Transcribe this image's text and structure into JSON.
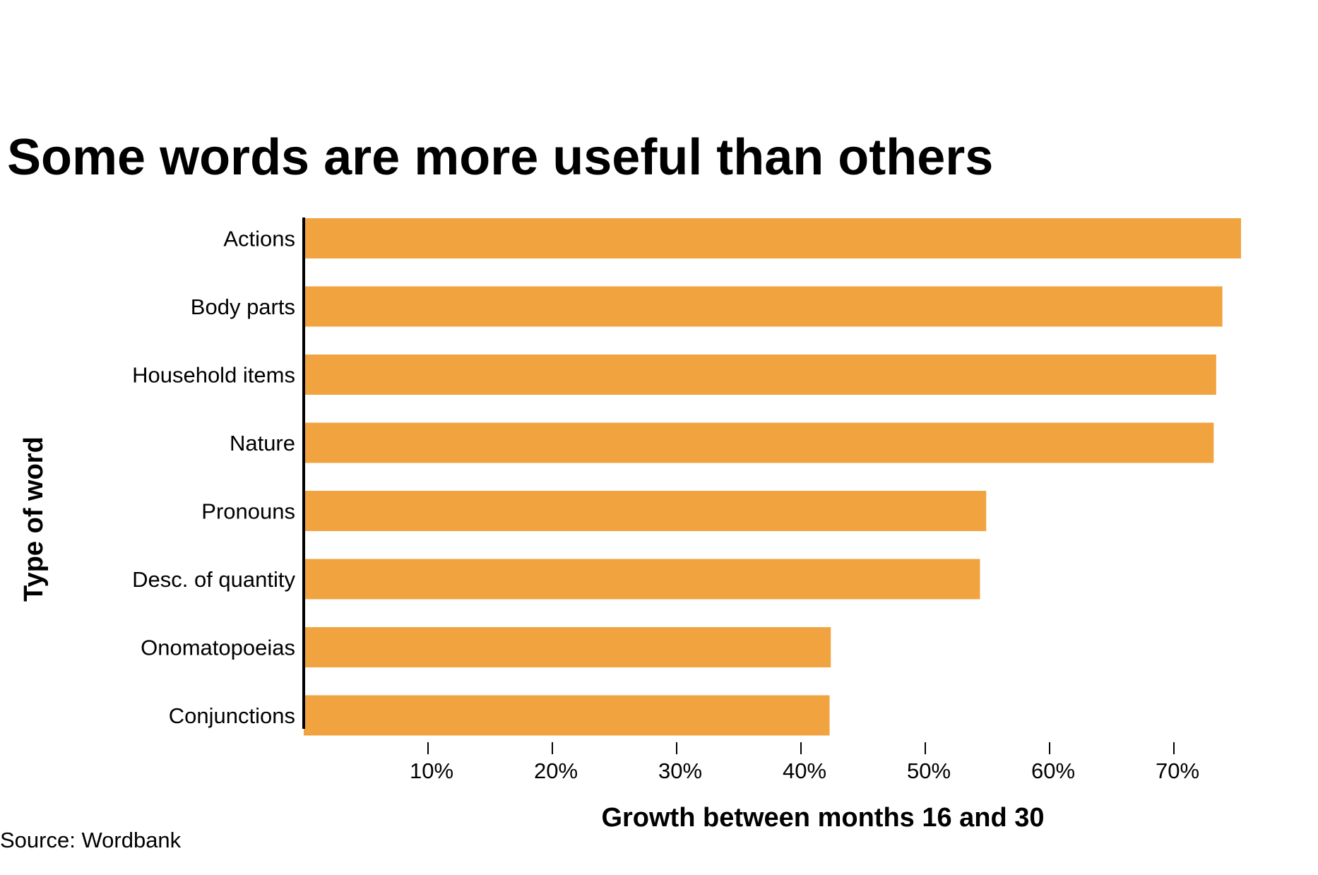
{
  "chart_data": {
    "type": "bar",
    "orientation": "horizontal",
    "title": "Some words are more useful than others",
    "xlabel": "Growth between months 16 and 30",
    "ylabel": "Type of word",
    "source": "Source: Wordbank",
    "categories": [
      "Actions",
      "Body parts",
      "Household items",
      "Nature",
      "Pronouns",
      "Desc. of quantity",
      "Onomatopoeias",
      "Conjunctions"
    ],
    "values": [
      75.4,
      73.9,
      73.4,
      73.2,
      54.9,
      54.4,
      42.4,
      42.3
    ],
    "xlim": [
      0,
      80
    ],
    "xticks": [
      10,
      20,
      30,
      40,
      50,
      60,
      70
    ],
    "xtick_labels": [
      "10%",
      "20%",
      "30%",
      "40%",
      "50%",
      "60%",
      "70%"
    ],
    "bar_color": "#f1a340",
    "grid": false,
    "legend": "none"
  }
}
